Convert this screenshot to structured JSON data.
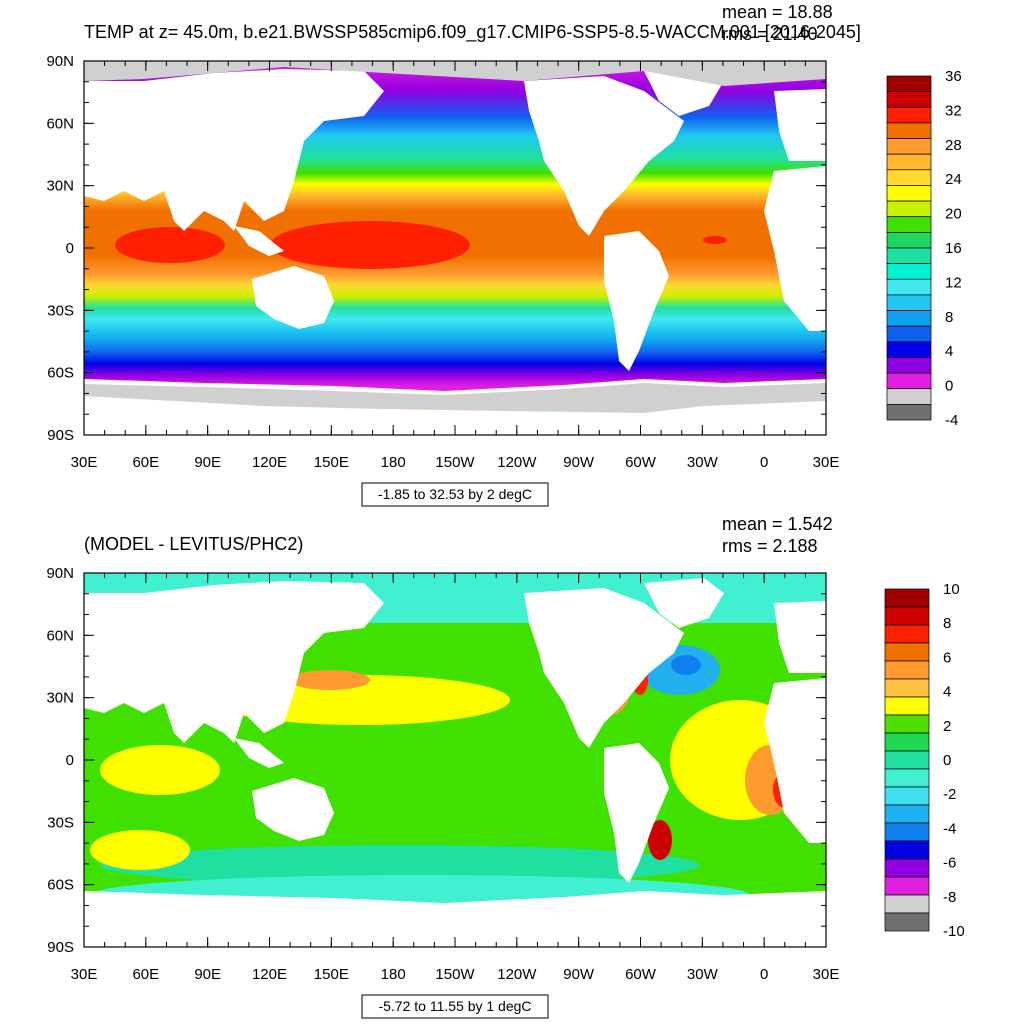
{
  "panels": [
    {
      "title": "TEMP at z=  45.0m, b.e21.BWSSP585cmip6.f09_g17.CMIP6-SSP5-8.5-WACCM.001 [2016-2045]",
      "stats": {
        "mean": "mean = 18.88",
        "rms": "rms = 21.40"
      },
      "range_label": "-1.85 to 32.53 by 2 degC",
      "colorbar": {
        "labels": [
          "36",
          "32",
          "28",
          "24",
          "20",
          "16",
          "12",
          "8",
          "4",
          "0",
          "-4"
        ],
        "colors": [
          "#a00000",
          "#cc0000",
          "#ff2000",
          "#f07000",
          "#ff9a30",
          "#ffb830",
          "#ffd830",
          "#ffff00",
          "#c8f000",
          "#40e000",
          "#20d860",
          "#20e0a0",
          "#00f0d0",
          "#40e8f0",
          "#20c8f0",
          "#10a0f0",
          "#1060f0",
          "#0000e8",
          "#9000e0",
          "#e020e0",
          "#d0d0d0",
          "#707070"
        ]
      }
    },
    {
      "title": "(MODEL - LEVITUS/PHC2)",
      "stats": {
        "mean": "mean = 1.542",
        "rms": "rms = 2.188"
      },
      "range_label": "-5.72 to 11.55 by 1 degC",
      "colorbar": {
        "labels": [
          "10",
          "8",
          "6",
          "4",
          "2",
          "0",
          "-2",
          "-4",
          "-6",
          "-8",
          "-10"
        ],
        "colors": [
          "#a00000",
          "#cc0000",
          "#ff2000",
          "#f07000",
          "#ff9a30",
          "#ffc040",
          "#ffff00",
          "#50e000",
          "#20d850",
          "#20e0a0",
          "#40f0d0",
          "#40e0f0",
          "#20b0f0",
          "#1080f0",
          "#0000e0",
          "#9000e0",
          "#e020e0",
          "#d0d0d0",
          "#707070"
        ]
      }
    }
  ],
  "axes": {
    "lon_ticks": [
      "30E",
      "60E",
      "90E",
      "120E",
      "150E",
      "180",
      "150W",
      "120W",
      "90W",
      "60W",
      "30W",
      "0",
      "30E"
    ],
    "lat_ticks": [
      "90N",
      "60N",
      "30N",
      "0",
      "30S",
      "60S",
      "90S"
    ]
  },
  "colors": {
    "land": "#ffffff",
    "ice": "#d0d0d0",
    "frame": "#000000"
  }
}
